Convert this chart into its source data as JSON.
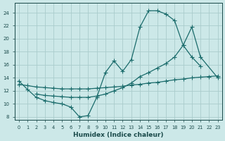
{
  "xlabel": "Humidex (Indice chaleur)",
  "bg_color": "#cce8e8",
  "grid_color": "#aacccc",
  "line_color": "#1a6b6b",
  "xlim": [
    -0.5,
    23.5
  ],
  "ylim": [
    7.5,
    25.5
  ],
  "xticks": [
    0,
    1,
    2,
    3,
    4,
    5,
    6,
    7,
    8,
    9,
    10,
    11,
    12,
    13,
    14,
    15,
    16,
    17,
    18,
    19,
    20,
    21,
    22,
    23
  ],
  "yticks": [
    8,
    10,
    12,
    14,
    16,
    18,
    20,
    22,
    24
  ],
  "line1_x": [
    0,
    1,
    2,
    3,
    4,
    5,
    6,
    7,
    8,
    9,
    10,
    11,
    12,
    13,
    14,
    15,
    16,
    17,
    18,
    19,
    20,
    21
  ],
  "line1_y": [
    13.5,
    12.2,
    11.0,
    10.5,
    10.2,
    10.0,
    9.5,
    8.0,
    8.2,
    11.0,
    14.8,
    16.6,
    15.0,
    16.8,
    21.8,
    24.3,
    24.3,
    23.8,
    22.8,
    19.0,
    17.2,
    15.8
  ],
  "line2_x": [
    0,
    1,
    2,
    3,
    4,
    5,
    6,
    7,
    8,
    9,
    10,
    11,
    12,
    13,
    14,
    15,
    16,
    17,
    18,
    19,
    20,
    21,
    22,
    23
  ],
  "line2_y": [
    13.0,
    12.8,
    12.6,
    12.5,
    12.4,
    12.3,
    12.3,
    12.3,
    12.3,
    12.4,
    12.5,
    12.6,
    12.7,
    12.9,
    13.0,
    13.2,
    13.3,
    13.5,
    13.7,
    13.8,
    14.0,
    14.1,
    14.2,
    14.3
  ],
  "line3_x": [
    2,
    3,
    4,
    5,
    6,
    7,
    8,
    9,
    10,
    11,
    12,
    13,
    14,
    15,
    16,
    17,
    18,
    19,
    20,
    21,
    23
  ],
  "line3_y": [
    11.5,
    11.3,
    11.2,
    11.1,
    11.0,
    11.0,
    11.0,
    11.2,
    11.5,
    12.0,
    12.5,
    13.2,
    14.2,
    14.8,
    15.5,
    16.2,
    17.2,
    19.0,
    21.8,
    17.2,
    14.0
  ]
}
